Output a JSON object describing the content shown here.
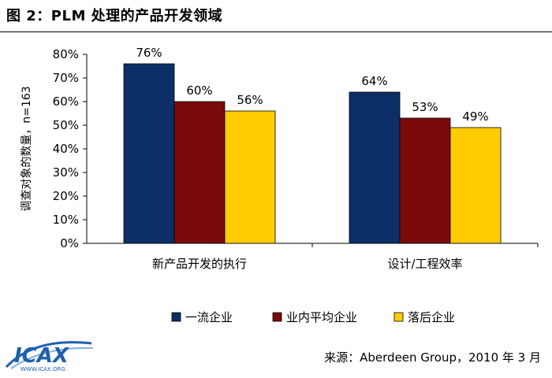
{
  "figure": {
    "title": "图 2：PLM 处理的产品开发领域",
    "source": "来源：Aberdeen Group，2010 年 3 月",
    "logo_text": "ICAX",
    "logo_url_text": "WWW.ICAX.ORG"
  },
  "chart_data": {
    "type": "bar",
    "categories": [
      "新产品开发的执行",
      "设计/工程效率"
    ],
    "series": [
      {
        "name": "一流企业",
        "values": [
          76,
          64
        ],
        "color": "#0b2f66"
      },
      {
        "name": "业内平均企业",
        "values": [
          60,
          53
        ],
        "color": "#7b0a0a"
      },
      {
        "name": "落后企业",
        "values": [
          56,
          49
        ],
        "color": "#ffcc00"
      }
    ],
    "value_labels": [
      [
        "76%",
        "64%"
      ],
      [
        "60%",
        "53%"
      ],
      [
        "56%",
        "49%"
      ]
    ],
    "ylabel": "调查对象的数量，n=163",
    "ylim": [
      0,
      80
    ],
    "yticks": [
      0,
      10,
      20,
      30,
      40,
      50,
      60,
      70,
      80
    ],
    "ytick_labels": [
      "0%",
      "10%",
      "20%",
      "30%",
      "40%",
      "50%",
      "60%",
      "70%",
      "80%"
    ],
    "grid": false,
    "legend_position": "bottom"
  }
}
